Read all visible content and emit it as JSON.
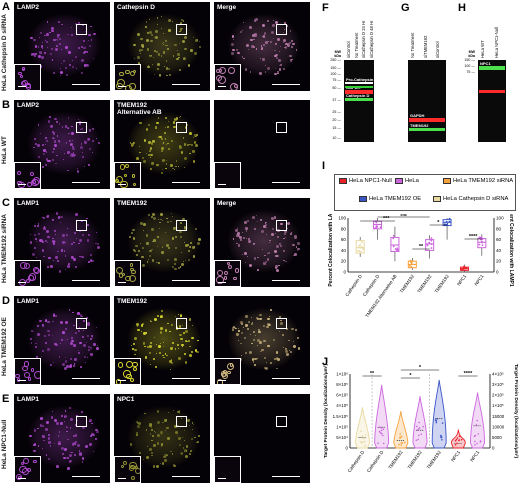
{
  "panels": {
    "A": {
      "label": "A",
      "row_label": "HeLa Cathepsin D siRNA",
      "channels": [
        "LAMP2",
        "Cathepsin D",
        "Merge"
      ]
    },
    "B": {
      "label": "B",
      "row_label": "HeLa WT",
      "channels": [
        "LAMP2",
        "TMEM192\nAlternative AB",
        ""
      ]
    },
    "C": {
      "label": "C",
      "row_label": "HeLa TMEM192 siRNA",
      "channels": [
        "LAMP1",
        "TMEM192",
        "Merge"
      ]
    },
    "D": {
      "label": "D",
      "row_label": "HeLa TMEM192 OE",
      "channels": [
        "LAMP1",
        "TMEM192",
        ""
      ]
    },
    "E": {
      "label": "E",
      "row_label": "HeLa NPC1-Null",
      "channels": [
        "LAMP1",
        "NPC1",
        ""
      ]
    }
  },
  "blot_F": {
    "label": "F",
    "mw_title": "MW\nkDa",
    "mw": [
      "250",
      "150",
      "100",
      "75",
      "50",
      "37",
      "25",
      "20",
      "15",
      "10"
    ],
    "lanes": [
      "siControl",
      "No Treatment",
      "siCathepsin D 24 Hr",
      "siCathepsin D 48 Hr"
    ],
    "bands": [
      "Pro-Cathepsin D",
      "GAPDH",
      "Cathepsin D"
    ]
  },
  "blot_G": {
    "label": "G",
    "lanes": [
      "No Treatment",
      "siTMEM192",
      "siControl"
    ],
    "bands": [
      "GAPDH",
      "TMEM192"
    ]
  },
  "blot_H": {
    "label": "H",
    "mw_title": "MW\nkDa",
    "mw": [
      "150",
      "100",
      "75"
    ],
    "lanes": [
      "HeLa WT",
      "HeLa NPC1-Null"
    ],
    "bands": [
      "NPC1"
    ]
  },
  "legend_I": {
    "label": "I",
    "items": [
      {
        "name": "HeLa NPC1-Null",
        "color": "#e8202a"
      },
      {
        "name": "HeLa",
        "color": "#cc66dd"
      },
      {
        "name": "HeLa TMEM192 siRNA",
        "color": "#f7a23c"
      },
      {
        "name": "HeLa TMEM192 OE",
        "color": "#3a55c8"
      },
      {
        "name": "HeLa Cathepsin D siRNA",
        "color": "#e8d9a0"
      }
    ]
  },
  "chart_I": {
    "label": "I",
    "ylabel_left": "Percent Colocalization with LAMP2",
    "ylabel_right": "Percent Colocalization with LAMP1",
    "yticks": [
      "0",
      "20",
      "40",
      "60",
      "80",
      "100"
    ],
    "categories": [
      "Cathepsin D",
      "Cathepsin D",
      "TMEM192 Alternative AB",
      "TMEM192",
      "TMEM192",
      "TMEM192",
      "NPC1",
      "NPC1"
    ],
    "significance": [
      "***",
      "ns",
      "**",
      "*",
      "****"
    ]
  },
  "chart_J": {
    "label": "J",
    "ylabel_left": "Target Protein Density (localizations/μm²)",
    "ylabel_right": "Target Protein Density (localizations/μm²)",
    "yticks_left": [
      "0",
      "5×10⁴",
      "1×10⁵",
      "1.5×10⁵",
      "4×10⁵",
      "6×10⁵",
      "8×10⁵",
      "1×10⁶"
    ],
    "yticks_right": [
      "0",
      "5000",
      "10000",
      "15000",
      "1×10⁵",
      "2×10⁵",
      "3×10⁵",
      "4×10⁵"
    ],
    "categories": [
      "Cathepsin D",
      "Cathepsin D",
      "TMEM192",
      "TMEM192",
      "TMEM192",
      "NPC1",
      "NPC1"
    ],
    "significance": [
      "**",
      "*",
      "*",
      "****"
    ]
  },
  "chart_data": [
    {
      "type": "box",
      "title": "",
      "ylabel": "Percent Colocalization with LAMP2 / LAMP1",
      "ylim": [
        0,
        100
      ],
      "categories": [
        "Cathepsin D",
        "Cathepsin D",
        "TMEM192 Alternative AB",
        "TMEM192",
        "TMEM192",
        "TMEM192",
        "NPC1",
        "NPC1"
      ],
      "series": [
        {
          "name": "HeLa Cathepsin D siRNA",
          "color": "#e8d9a0",
          "median": 45,
          "q1": 35,
          "q3": 58,
          "min": 28,
          "max": 65
        },
        {
          "name": "HeLa",
          "color": "#cc66dd",
          "median": 88,
          "q1": 80,
          "q3": 94,
          "min": 60,
          "max": 100
        },
        {
          "name": "HeLa",
          "color": "#cc66dd",
          "median": 50,
          "q1": 38,
          "q3": 64,
          "min": 20,
          "max": 84
        },
        {
          "name": "HeLa TMEM192 siRNA",
          "color": "#f7a23c",
          "median": 14,
          "q1": 8,
          "q3": 20,
          "min": 4,
          "max": 26
        },
        {
          "name": "HeLa",
          "color": "#cc66dd",
          "median": 52,
          "q1": 40,
          "q3": 60,
          "min": 25,
          "max": 68
        },
        {
          "name": "HeLa TMEM192 OE",
          "color": "#3a55c8",
          "median": 92,
          "q1": 86,
          "q3": 97,
          "min": 60,
          "max": 100
        },
        {
          "name": "HeLa NPC1-Null",
          "color": "#e8202a",
          "median": 6,
          "q1": 3,
          "q3": 9,
          "min": 1,
          "max": 14
        },
        {
          "name": "HeLa",
          "color": "#cc66dd",
          "median": 55,
          "q1": 45,
          "q3": 62,
          "min": 30,
          "max": 70
        }
      ]
    },
    {
      "type": "violin",
      "title": "",
      "ylabel": "Target Protein Density (localizations/μm²)",
      "categories": [
        "Cathepsin D",
        "Cathepsin D",
        "TMEM192",
        "TMEM192",
        "TMEM192",
        "NPC1",
        "NPC1"
      ],
      "series": [
        {
          "name": "HeLa Cathepsin D siRNA",
          "color": "#e8d9a0",
          "median_frac": 0.14,
          "top_frac": 0.55
        },
        {
          "name": "HeLa",
          "color": "#cc66dd",
          "median_frac": 0.28,
          "top_frac": 0.85
        },
        {
          "name": "HeLa TMEM192 siRNA",
          "color": "#f7a23c",
          "median_frac": 0.1,
          "top_frac": 0.5
        },
        {
          "name": "HeLa",
          "color": "#cc66dd",
          "median_frac": 0.24,
          "top_frac": 0.7
        },
        {
          "name": "HeLa TMEM192 OE",
          "color": "#3a55c8",
          "median_frac": 0.4,
          "top_frac": 0.92
        },
        {
          "name": "HeLa NPC1-Null",
          "color": "#e8202a",
          "median_frac": 0.06,
          "top_frac": 0.25
        },
        {
          "name": "HeLa",
          "color": "#cc66dd",
          "median_frac": 0.3,
          "top_frac": 0.75
        }
      ]
    }
  ]
}
